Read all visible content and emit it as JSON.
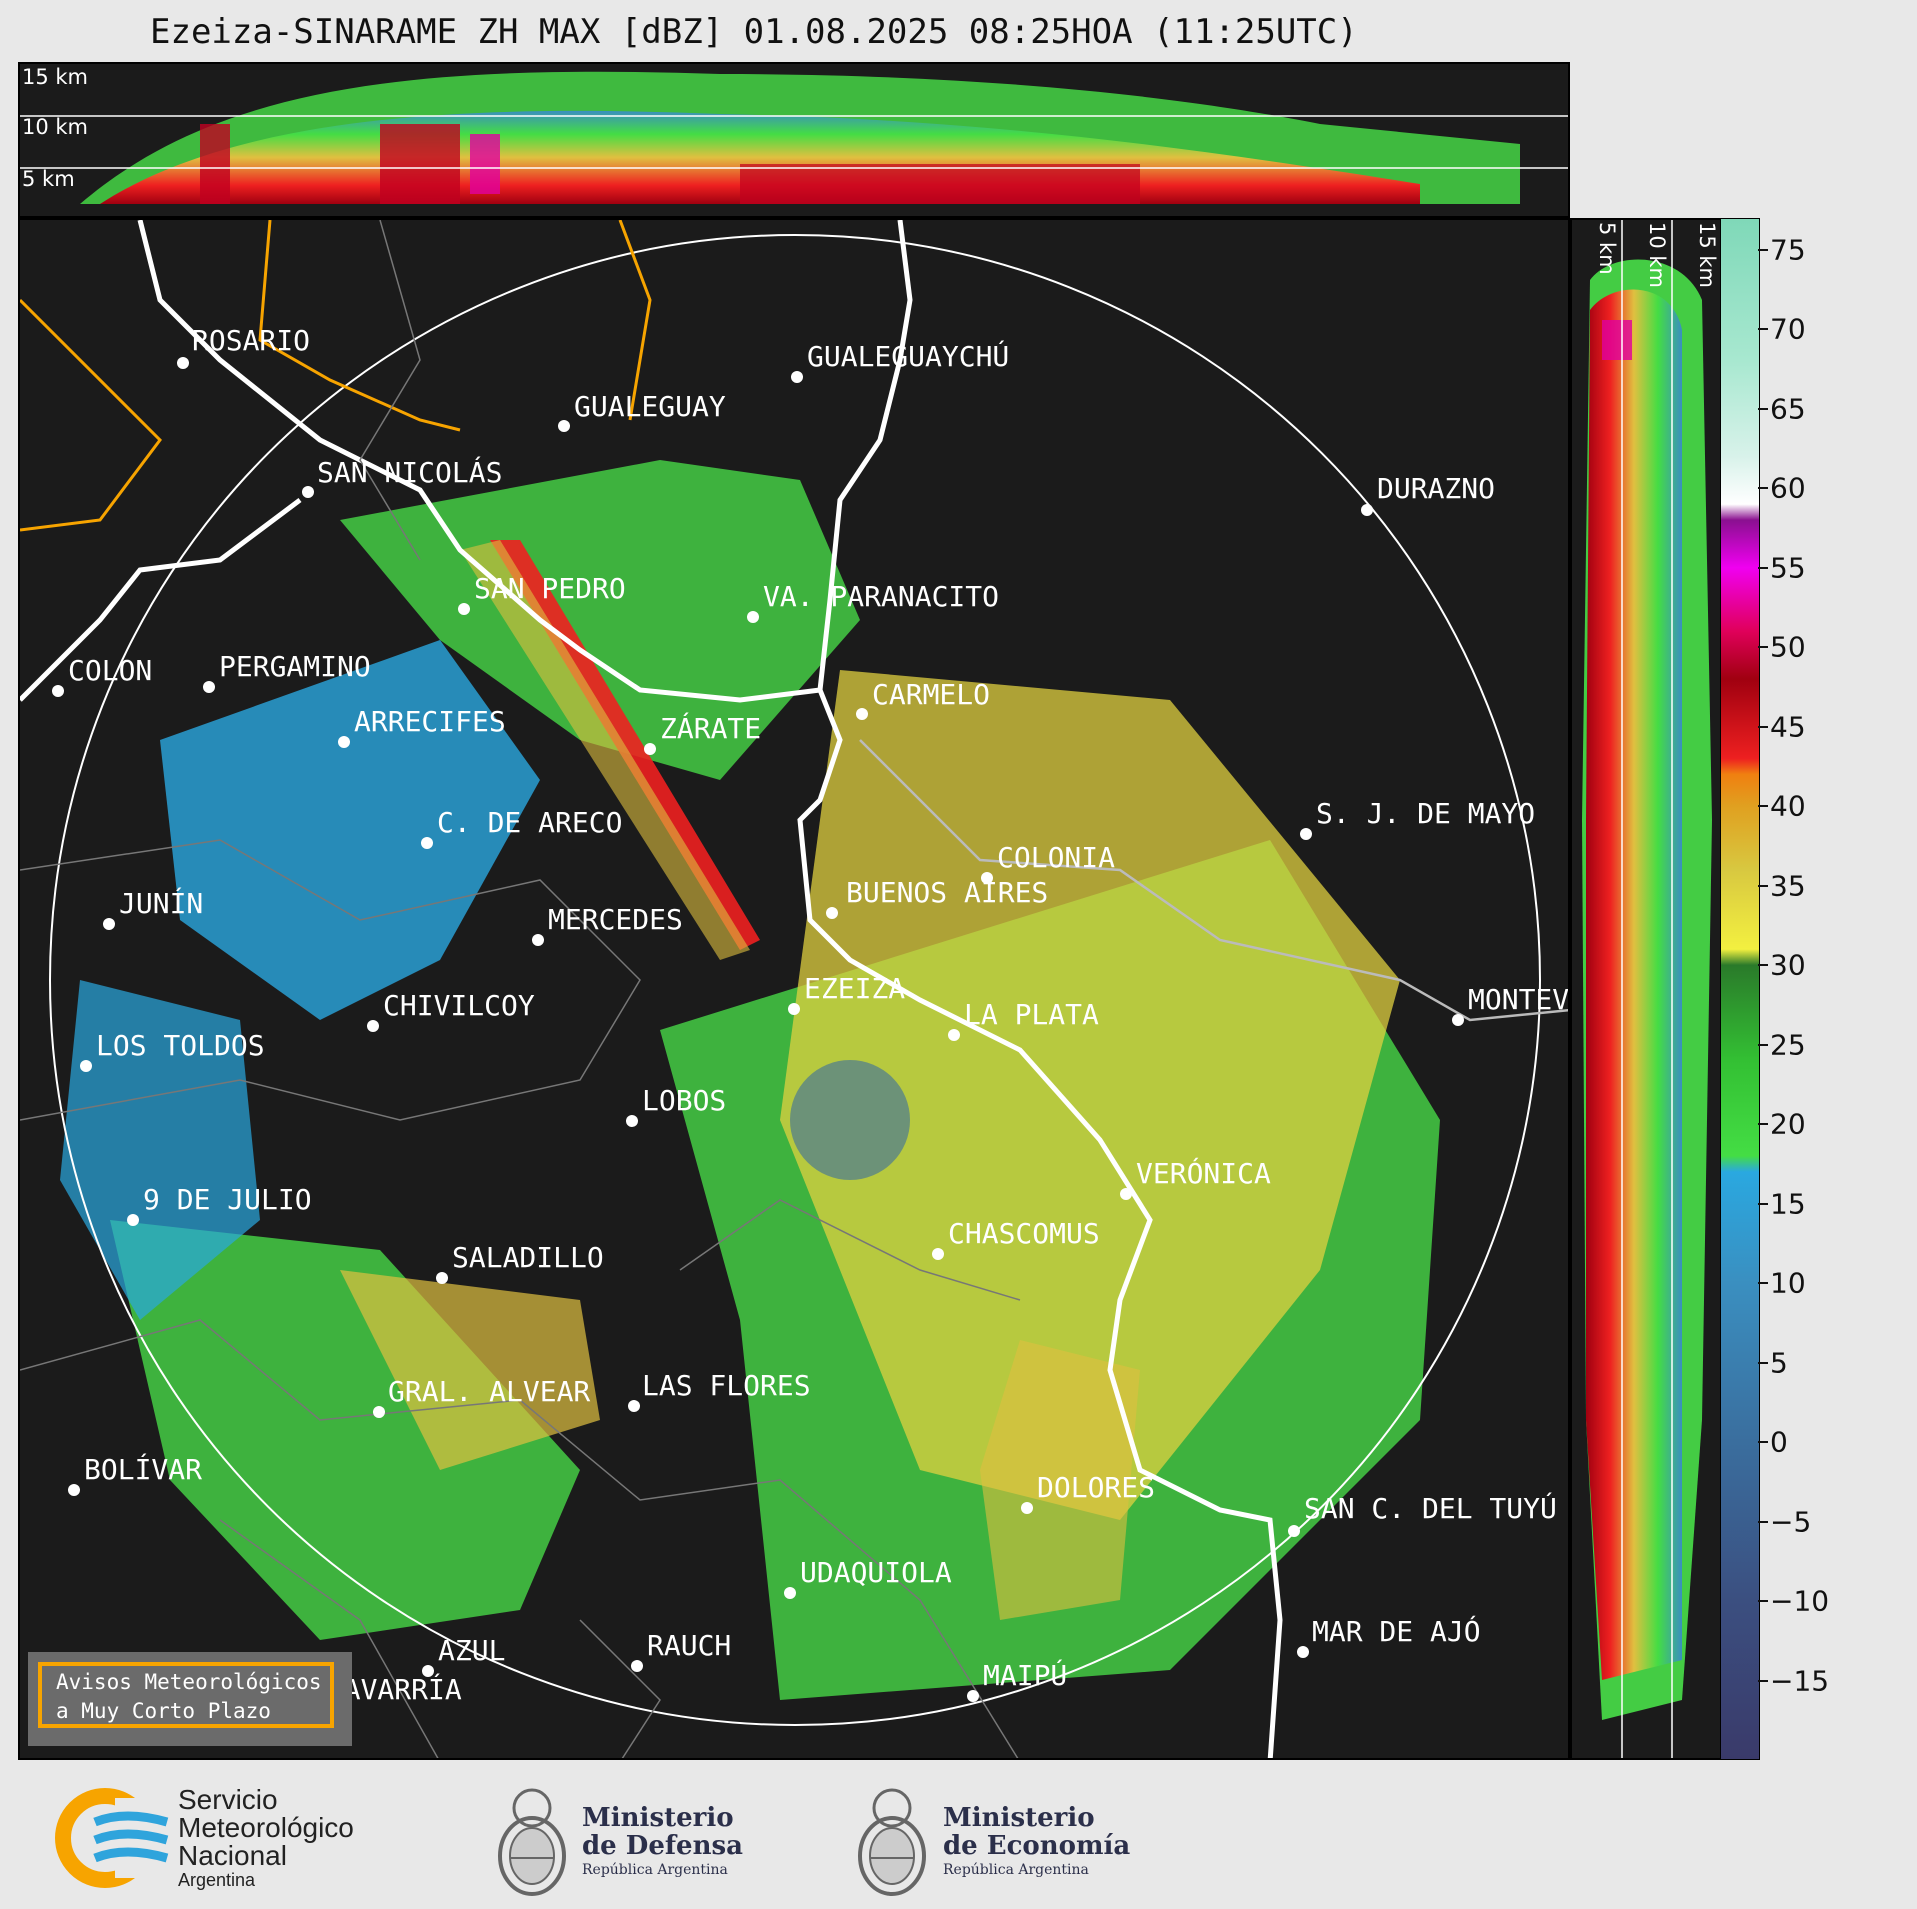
{
  "title": "Ezeiza-SINARAME ZH MAX [dBZ] 01.08.2025 08:25HOA (11:25UTC)",
  "top_altitudes": [
    "15 km",
    "10 km",
    "5 km"
  ],
  "side_altitudes": [
    "5 km",
    "10 km",
    "15 km"
  ],
  "colorbar": {
    "unit": "dBZ",
    "ticks": [
      "75",
      "70",
      "65",
      "60",
      "55",
      "50",
      "45",
      "40",
      "35",
      "30",
      "25",
      "20",
      "15",
      "10",
      "5",
      "0",
      "−5",
      "−10",
      "−15"
    ],
    "range": [
      -20,
      77
    ],
    "stops": [
      {
        "v": -20,
        "c": "#3a3a6a"
      },
      {
        "v": -10,
        "c": "#3b4f80"
      },
      {
        "v": 0,
        "c": "#3a6e9e"
      },
      {
        "v": 10,
        "c": "#3a8fc0"
      },
      {
        "v": 17,
        "c": "#2aa8e0"
      },
      {
        "v": 18,
        "c": "#44dd44"
      },
      {
        "v": 24,
        "c": "#33c033"
      },
      {
        "v": 30,
        "c": "#2a7a2a"
      },
      {
        "v": 31,
        "c": "#f3f040"
      },
      {
        "v": 36,
        "c": "#d8c840"
      },
      {
        "v": 40,
        "c": "#e0a020"
      },
      {
        "v": 42,
        "c": "#f08010"
      },
      {
        "v": 43,
        "c": "#ee2020"
      },
      {
        "v": 48,
        "c": "#a00010"
      },
      {
        "v": 51,
        "c": "#e0005a"
      },
      {
        "v": 55,
        "c": "#f000f0"
      },
      {
        "v": 58,
        "c": "#8a1090"
      },
      {
        "v": 59,
        "c": "#ffffff"
      },
      {
        "v": 62,
        "c": "#d8f2ea"
      },
      {
        "v": 68,
        "c": "#a8e8d0"
      },
      {
        "v": 77,
        "c": "#7fd8b8"
      }
    ]
  },
  "cities": [
    {
      "name": "ROSARIO"
    },
    {
      "name": "GUALEGUAYCHÚ"
    },
    {
      "name": "GUALEGUAY"
    },
    {
      "name": "SAN NICOLÁS"
    },
    {
      "name": "DURAZNO"
    },
    {
      "name": "SAN PEDRO"
    },
    {
      "name": "VA. PARANACITO"
    },
    {
      "name": "COLON"
    },
    {
      "name": "PERGAMINO"
    },
    {
      "name": "CARMELO"
    },
    {
      "name": "ARRECIFES"
    },
    {
      "name": "ZÁRATE"
    },
    {
      "name": "S. J. DE MAYO"
    },
    {
      "name": "C. DE ARECO"
    },
    {
      "name": "COLONIA"
    },
    {
      "name": "BUENOS AIRES"
    },
    {
      "name": "JUNÍN"
    },
    {
      "name": "MERCEDES"
    },
    {
      "name": "MONTEV"
    },
    {
      "name": "EZEIZA"
    },
    {
      "name": "CHIVILCOY"
    },
    {
      "name": "LA PLATA"
    },
    {
      "name": "LOS TOLDOS"
    },
    {
      "name": "LOBOS"
    },
    {
      "name": "VERÓNICA"
    },
    {
      "name": "9 DE JULIO"
    },
    {
      "name": "CHASCOMUS"
    },
    {
      "name": "SALADILLO"
    },
    {
      "name": "GRAL. ALVEAR"
    },
    {
      "name": "LAS FLORES"
    },
    {
      "name": "BOLÍVAR"
    },
    {
      "name": "DOLORES"
    },
    {
      "name": "SAN C. DEL TUYÚ"
    },
    {
      "name": "UDAQUIOLA"
    },
    {
      "name": "MAR DE AJÓ"
    },
    {
      "name": "AZUL"
    },
    {
      "name": "RAUCH"
    },
    {
      "name": "MAIPÚ"
    },
    {
      "name": "OLAVARRÍA"
    }
  ],
  "avisos": {
    "line1": "Avisos Meteorológicos",
    "line2": "a Muy Corto Plazo"
  },
  "logos": {
    "smn": {
      "line1": "Servicio",
      "line2": "Meteorológico",
      "line3": "Nacional",
      "line4": "Argentina"
    },
    "defensa": {
      "line1": "Ministerio",
      "line2": "de Defensa",
      "line3": "República Argentina"
    },
    "economia": {
      "line1": "Ministerio",
      "line2": "de Economía",
      "line3": "República Argentina"
    }
  }
}
